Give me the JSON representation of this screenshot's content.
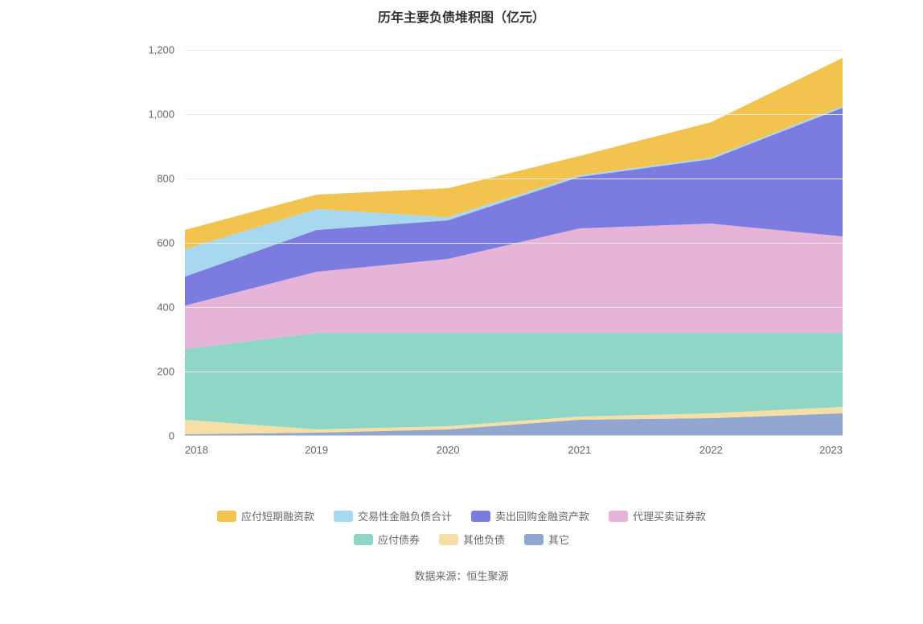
{
  "chart": {
    "type": "area-stacked",
    "title": "历年主要负债堆积图（亿元）",
    "title_fontsize": 16,
    "title_color": "#333333",
    "background_color": "#ffffff",
    "categories": [
      "2018",
      "2019",
      "2020",
      "2021",
      "2022",
      "2023"
    ],
    "series": [
      {
        "name": "其它",
        "color": "#91a7d0",
        "data": [
          5,
          10,
          20,
          50,
          55,
          70
        ]
      },
      {
        "name": "其他负债",
        "color": "#f6dfa6",
        "data": [
          45,
          10,
          10,
          10,
          15,
          20
        ]
      },
      {
        "name": "应付债券",
        "color": "#8fd6c7",
        "data": [
          220,
          300,
          290,
          260,
          250,
          230
        ]
      },
      {
        "name": "代理买卖证券款",
        "color": "#e6b3d9",
        "data": [
          135,
          190,
          230,
          325,
          340,
          300
        ]
      },
      {
        "name": "卖出回购金融资产款",
        "color": "#7b7be0",
        "data": [
          90,
          130,
          120,
          160,
          200,
          400
        ]
      },
      {
        "name": "交易性金融负债合计",
        "color": "#a7d8f0",
        "data": [
          85,
          65,
          10,
          5,
          5,
          5
        ]
      },
      {
        "name": "应付短期融资款",
        "color": "#f2c34e",
        "data": [
          60,
          45,
          90,
          60,
          110,
          150
        ]
      }
    ],
    "y_axis": {
      "min": 0,
      "max": 1200,
      "tick_step": 200,
      "ticks": [
        0,
        200,
        400,
        600,
        800,
        1000,
        1200
      ],
      "tick_labels": [
        "0",
        "200",
        "400",
        "600",
        "800",
        "1,000",
        "1,200"
      ],
      "label_fontsize": 13,
      "label_color": "#666666",
      "grid_color": "#e8e8e8"
    },
    "x_axis": {
      "label_fontsize": 13,
      "label_color": "#666666"
    },
    "legend": {
      "position": "bottom",
      "fontsize": 13,
      "color": "#666666",
      "rows": [
        [
          "应付短期融资款",
          "交易性金融负债合计",
          "卖出回购金融资产款",
          "代理买卖证券款"
        ],
        [
          "应付债券",
          "其他负债",
          "其它"
        ]
      ]
    }
  },
  "source": {
    "label": "数据来源：恒生聚源"
  }
}
